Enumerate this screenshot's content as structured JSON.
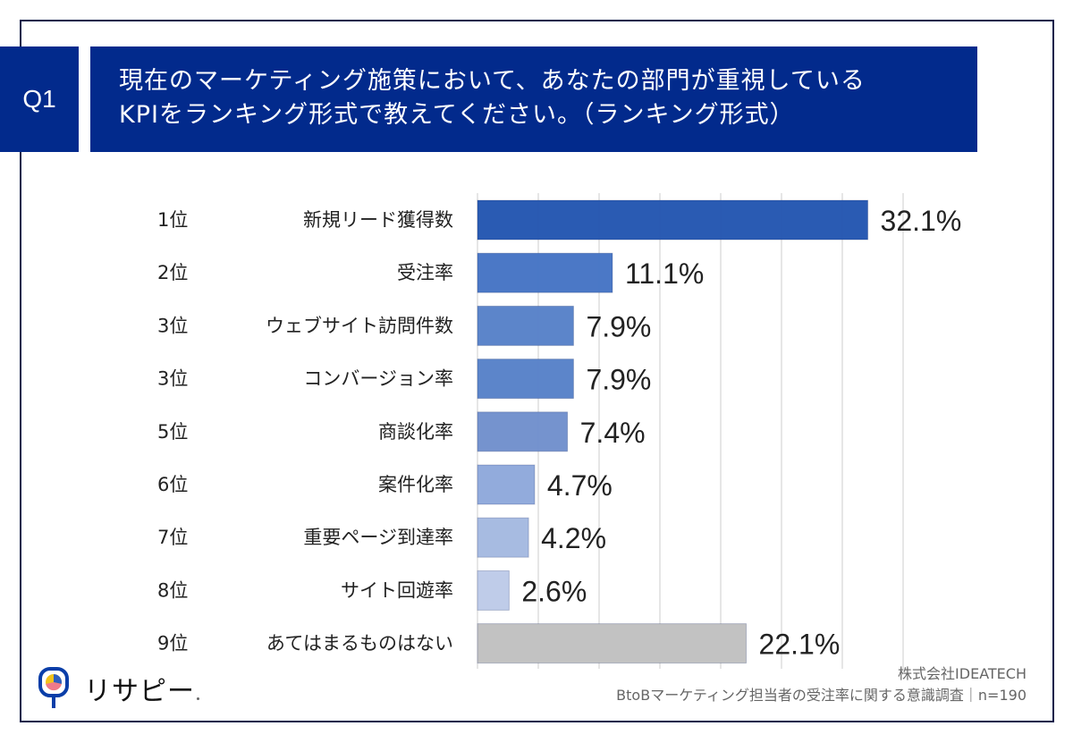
{
  "header": {
    "badge": "Q1",
    "title_line1": "現在のマーケティング施策において、あなたの部門が重視している",
    "title_line2": "KPIをランキング形式で教えてください。（ランキング形式）"
  },
  "colors": {
    "navy": "#022a8c",
    "bars": [
      "#2154b0",
      "#4472c4",
      "#5580c8",
      "#5580c8",
      "#6f8fcc",
      "#8ea8db",
      "#a3b8e0",
      "#bccae8",
      "#bfbfbf"
    ],
    "grid": "#d9d9d9"
  },
  "chart_data": {
    "type": "bar",
    "orientation": "horizontal",
    "title": "現在のマーケティング施策において、あなたの部門が重視しているKPIをランキング形式で教えてください。（ランキング形式）",
    "ranks": [
      "1位",
      "2位",
      "3位",
      "3位",
      "5位",
      "6位",
      "7位",
      "8位",
      "9位"
    ],
    "categories": [
      "新規リード獲得数",
      "受注率",
      "ウェブサイト訪問件数",
      "コンバージョン率",
      "商談化率",
      "案件化率",
      "重要ページ到達率",
      "サイト回遊率",
      "あてはまるものはない"
    ],
    "values": [
      32.1,
      11.1,
      7.9,
      7.9,
      7.4,
      4.7,
      4.2,
      2.6,
      22.1
    ],
    "value_labels": [
      "32.1%",
      "11.1%",
      "7.9%",
      "7.9%",
      "7.4%",
      "4.7%",
      "4.2%",
      "2.6%",
      "22.1%"
    ],
    "unit": "%",
    "xlim": [
      0,
      35
    ],
    "grid_step": 5,
    "grid": true,
    "axis_ticks_visible": false,
    "legend": "none"
  },
  "footer": {
    "company": "株式会社IDEATECH",
    "survey": "BtoBマーケティング担当者の受注率に関する意識調査｜n=190"
  },
  "logo": {
    "text": "リサピー",
    "icon": "research-pin-pie-icon"
  }
}
